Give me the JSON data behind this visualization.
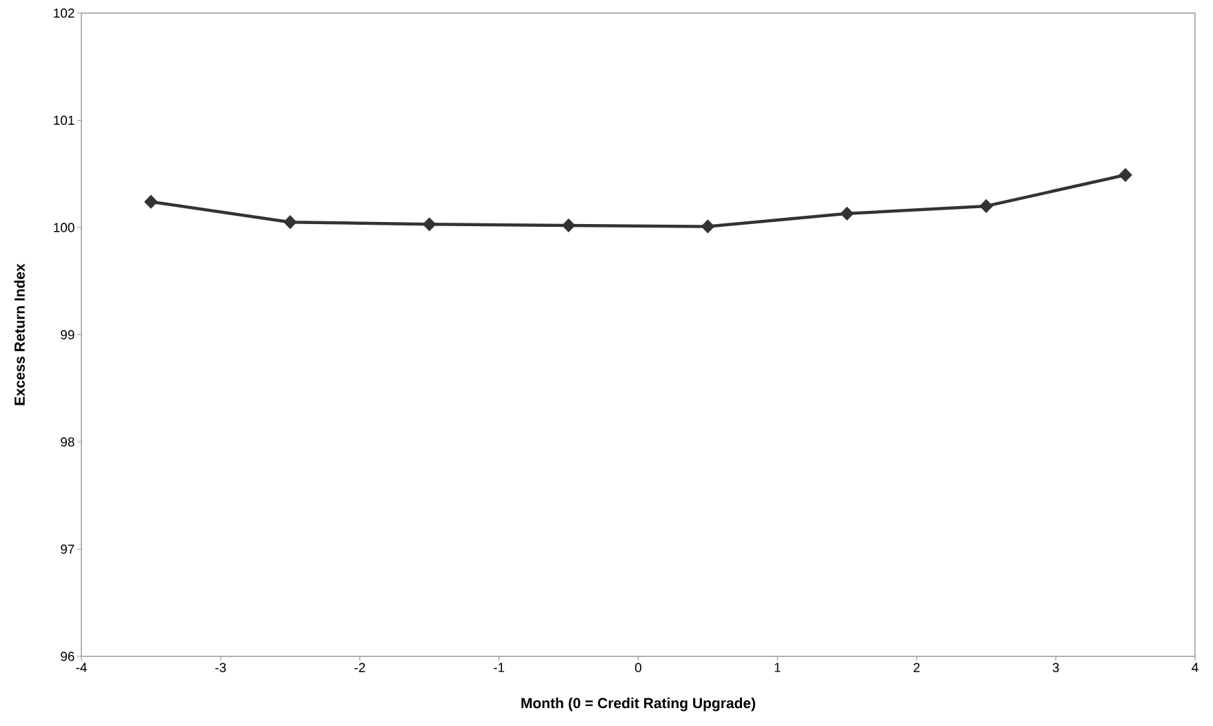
{
  "chart_data": {
    "type": "line",
    "xlabel": "Month (0 = Credit Rating Upgrade)",
    "ylabel": "Excess Return Index",
    "x": [
      -3.5,
      -2.5,
      -1.5,
      -0.5,
      0.5,
      1.5,
      2.5,
      3.5
    ],
    "series": [
      {
        "color": "#333333",
        "values": [
          100.24,
          100.05,
          100.03,
          100.02,
          100.01,
          100.13,
          100.2,
          100.49
        ]
      }
    ],
    "xlim": [
      -4,
      4
    ],
    "xticks": [
      -4,
      -3,
      -2,
      -1,
      0,
      1,
      2,
      3,
      4
    ],
    "ylim": [
      96,
      102
    ],
    "yticks": [
      96,
      97,
      98,
      99,
      100,
      101,
      102
    ],
    "grid": false,
    "marker": "diamond",
    "line_style": "solid"
  }
}
